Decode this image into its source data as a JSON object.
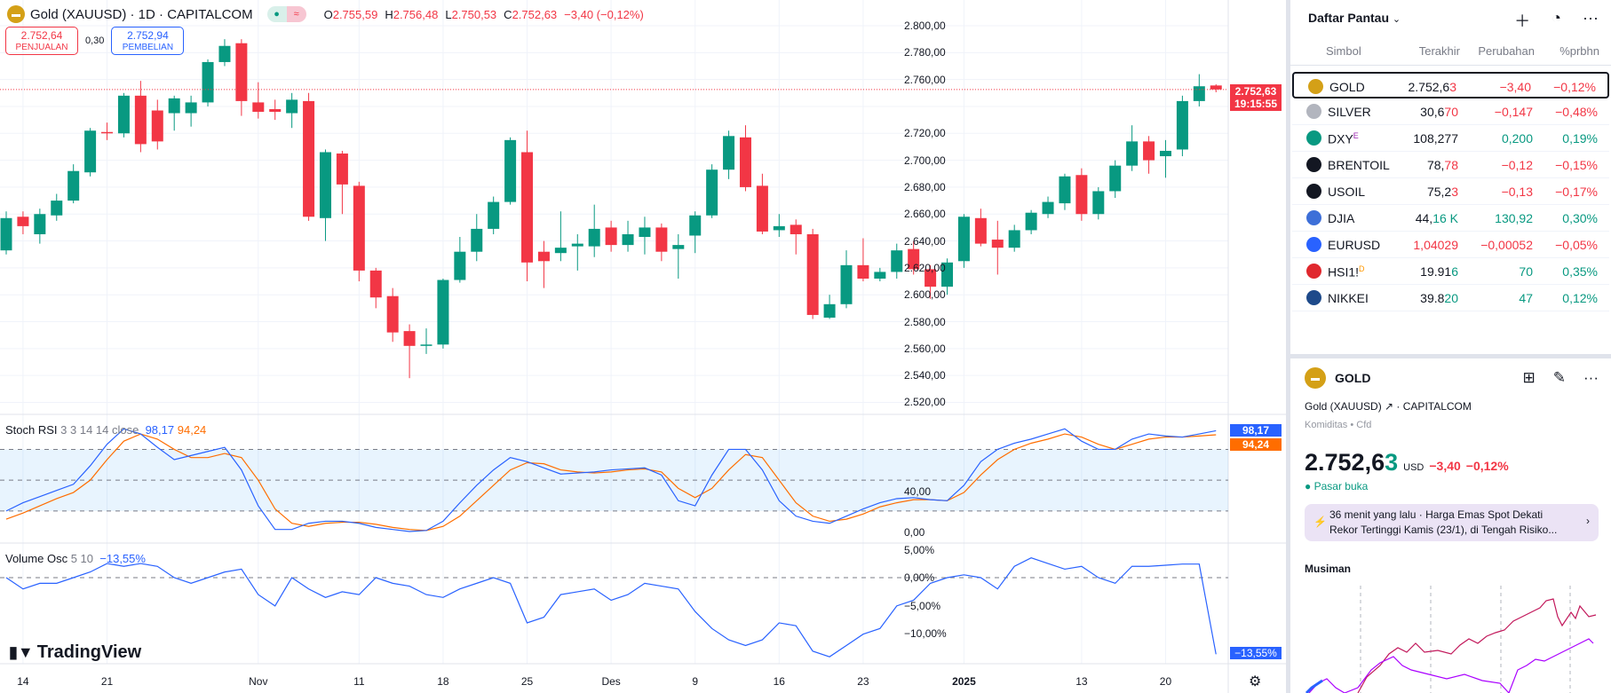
{
  "header": {
    "symbol_title": "Gold (XAUUSD) · 1D · CAPITALCOM",
    "ohlc": {
      "o_label": "O",
      "o": "2.755,59",
      "h_label": "H",
      "h": "2.756,48",
      "l_label": "L",
      "l": "2.750,53",
      "c_label": "C",
      "c": "2.752,63",
      "change": "−3,40 (−0,12%)"
    }
  },
  "trade": {
    "sell_price": "2.752,64",
    "sell_label": "PENJUALAN",
    "spread": "0,30",
    "buy_price": "2.752,94",
    "buy_label": "PEMBELIAN"
  },
  "price_axis": {
    "labels": [
      "2.800,00",
      "2.780,00",
      "2.760,00",
      "2.720,00",
      "2.700,00",
      "2.680,00",
      "2.660,00",
      "2.640,00",
      "2.620,00",
      "2.600,00",
      "2.580,00",
      "2.560,00",
      "2.540,00",
      "2.520,00"
    ],
    "last_price": "2.752,63",
    "countdown": "19:15:55"
  },
  "stoch": {
    "title": "Stoch RSI",
    "params": "3 3 14 14 close",
    "k": "98,17",
    "d": "94,24",
    "axis": [
      "40,00",
      "0,00"
    ]
  },
  "volosc": {
    "title": "Volume Osc",
    "params": "5 10",
    "value": "−13,55%",
    "axis": [
      "5,00%",
      "0,00%",
      "−5,00%",
      "−10,00%"
    ],
    "tag": "−13,55%"
  },
  "time_axis": [
    {
      "label": "14",
      "i": 1
    },
    {
      "label": "21",
      "i": 6
    },
    {
      "label": "Nov",
      "i": 15
    },
    {
      "label": "11",
      "i": 21
    },
    {
      "label": "18",
      "i": 26
    },
    {
      "label": "25",
      "i": 31
    },
    {
      "label": "Des",
      "i": 36
    },
    {
      "label": "9",
      "i": 41
    },
    {
      "label": "16",
      "i": 46
    },
    {
      "label": "23",
      "i": 51
    },
    {
      "label": "2025",
      "i": 57
    },
    {
      "label": "13",
      "i": 64
    },
    {
      "label": "20",
      "i": 69
    }
  ],
  "logo": "TradingView",
  "colors": {
    "up": "#089981",
    "down": "#f23645",
    "k": "#2962ff",
    "d": "#ff6d00"
  },
  "chart_data": {
    "type": "candlestick",
    "ohlc": [
      [
        2633,
        2662,
        2630,
        2657
      ],
      [
        2658,
        2662,
        2645,
        2651
      ],
      [
        2645,
        2664,
        2638,
        2660
      ],
      [
        2659,
        2675,
        2655,
        2670
      ],
      [
        2670,
        2697,
        2668,
        2692
      ],
      [
        2691,
        2724,
        2688,
        2722
      ],
      [
        2721,
        2728,
        2715,
        2720
      ],
      [
        2720,
        2750,
        2717,
        2748
      ],
      [
        2748,
        2759,
        2706,
        2712
      ],
      [
        2737,
        2745,
        2708,
        2714
      ],
      [
        2735,
        2748,
        2722,
        2746
      ],
      [
        2735,
        2748,
        2725,
        2743
      ],
      [
        2743,
        2775,
        2740,
        2773
      ],
      [
        2773,
        2790,
        2770,
        2785
      ],
      [
        2787,
        2790,
        2733,
        2744
      ],
      [
        2743,
        2758,
        2731,
        2736
      ],
      [
        2738,
        2745,
        2730,
        2736
      ],
      [
        2735,
        2750,
        2724,
        2745
      ],
      [
        2744,
        2750,
        2655,
        2658
      ],
      [
        2657,
        2708,
        2640,
        2706
      ],
      [
        2705,
        2707,
        2660,
        2682
      ],
      [
        2681,
        2684,
        2610,
        2618
      ],
      [
        2618,
        2620,
        2590,
        2598
      ],
      [
        2599,
        2605,
        2565,
        2572
      ],
      [
        2573,
        2578,
        2538,
        2562
      ],
      [
        2562,
        2575,
        2556,
        2563
      ],
      [
        2563,
        2612,
        2560,
        2611
      ],
      [
        2611,
        2643,
        2609,
        2632
      ],
      [
        2632,
        2660,
        2625,
        2649
      ],
      [
        2649,
        2673,
        2645,
        2669
      ],
      [
        2669,
        2717,
        2667,
        2715
      ],
      [
        2706,
        2722,
        2610,
        2624
      ],
      [
        2632,
        2640,
        2605,
        2625
      ],
      [
        2631,
        2662,
        2625,
        2635
      ],
      [
        2636,
        2645,
        2618,
        2638
      ],
      [
        2636,
        2667,
        2628,
        2649
      ],
      [
        2650,
        2655,
        2632,
        2637
      ],
      [
        2637,
        2655,
        2632,
        2645
      ],
      [
        2643,
        2658,
        2630,
        2650
      ],
      [
        2650,
        2653,
        2625,
        2632
      ],
      [
        2634,
        2645,
        2612,
        2637
      ],
      [
        2644,
        2662,
        2631,
        2659
      ],
      [
        2659,
        2697,
        2657,
        2693
      ],
      [
        2693,
        2722,
        2686,
        2718
      ],
      [
        2717,
        2726,
        2677,
        2680
      ],
      [
        2681,
        2690,
        2645,
        2647
      ],
      [
        2648,
        2660,
        2643,
        2651
      ],
      [
        2652,
        2656,
        2630,
        2645
      ],
      [
        2645,
        2649,
        2582,
        2585
      ],
      [
        2583,
        2600,
        2582,
        2593
      ],
      [
        2593,
        2633,
        2590,
        2622
      ],
      [
        2622,
        2642,
        2610,
        2612
      ],
      [
        2612,
        2620,
        2610,
        2617
      ],
      [
        2617,
        2638,
        2612,
        2633
      ],
      [
        2634,
        2640,
        2615,
        2619
      ],
      [
        2619,
        2622,
        2597,
        2606
      ],
      [
        2606,
        2627,
        2600,
        2624
      ],
      [
        2625,
        2660,
        2620,
        2658
      ],
      [
        2657,
        2664,
        2636,
        2638
      ],
      [
        2641,
        2655,
        2615,
        2635
      ],
      [
        2635,
        2652,
        2632,
        2648
      ],
      [
        2648,
        2663,
        2645,
        2661
      ],
      [
        2660,
        2673,
        2657,
        2669
      ],
      [
        2668,
        2690,
        2663,
        2688
      ],
      [
        2689,
        2694,
        2655,
        2660
      ],
      [
        2660,
        2680,
        2656,
        2677
      ],
      [
        2677,
        2700,
        2672,
        2696
      ],
      [
        2696,
        2726,
        2692,
        2714
      ],
      [
        2714,
        2718,
        2690,
        2700
      ],
      [
        2703,
        2715,
        2687,
        2707
      ],
      [
        2708,
        2748,
        2703,
        2744
      ],
      [
        2744,
        2764,
        2740,
        2755
      ],
      [
        2755.59,
        2756.48,
        2750.53,
        2752.63
      ]
    ],
    "ylim": [
      2510,
      2820
    ],
    "stoch_k": [
      20,
      28,
      34,
      40,
      46,
      64,
      85,
      100,
      95,
      82,
      70,
      74,
      78,
      82,
      60,
      25,
      2,
      2,
      8,
      10,
      10,
      8,
      4,
      2,
      0,
      1,
      10,
      28,
      45,
      60,
      72,
      68,
      62,
      56,
      57,
      58,
      60,
      61,
      62,
      55,
      30,
      25,
      55,
      80,
      80,
      60,
      30,
      15,
      10,
      8,
      15,
      22,
      28,
      32,
      33,
      31,
      30,
      45,
      68,
      80,
      86,
      90,
      95,
      100,
      88,
      80,
      80,
      90,
      95,
      93,
      92,
      95,
      98.17
    ],
    "stoch_d": [
      12,
      18,
      25,
      32,
      38,
      50,
      70,
      88,
      95,
      90,
      80,
      72,
      72,
      76,
      72,
      50,
      22,
      8,
      5,
      8,
      9,
      9,
      7,
      4,
      2,
      1,
      5,
      15,
      30,
      45,
      60,
      67,
      66,
      60,
      58,
      57,
      58,
      60,
      61,
      58,
      42,
      33,
      42,
      60,
      75,
      72,
      50,
      28,
      15,
      10,
      12,
      17,
      24,
      28,
      31,
      31,
      30,
      38,
      55,
      70,
      80,
      86,
      90,
      95,
      92,
      85,
      80,
      85,
      90,
      92,
      92,
      93,
      94.24
    ],
    "volosc": [
      0,
      -2,
      -1,
      -1,
      0,
      1,
      2.5,
      2,
      2.5,
      2,
      0,
      -1,
      0,
      1,
      1.5,
      -3,
      -5,
      0,
      -2,
      -3.5,
      -2.5,
      -3,
      0,
      -1,
      -1.5,
      -3,
      -3.5,
      -2,
      -1,
      0,
      -1,
      -8,
      -7,
      -3,
      -2.5,
      -2,
      -4,
      -3,
      -1,
      -1.5,
      -2,
      -6,
      -9,
      -11,
      -12,
      -11,
      -8,
      -8.5,
      -13,
      -14,
      -12,
      -10,
      -9,
      -5,
      -4,
      -1,
      0,
      0.5,
      0,
      -2,
      2,
      3.5,
      2.5,
      1.5,
      2,
      0,
      -1,
      2,
      2,
      2.2,
      2.4,
      2.4,
      -13.55
    ]
  },
  "watchlist": {
    "title": "Daftar Pantau",
    "columns": [
      "Simbol",
      "Terakhir",
      "Perubahan",
      "%prbhn"
    ],
    "rows": [
      {
        "sym": "GOLD",
        "last_a": "2.752,6",
        "last_b": "3",
        "chg": "−3,40",
        "pct": "−0,12%",
        "dir": "down",
        "icon": "gold-bar-icon",
        "ic": "#d4a017",
        "badge": ""
      },
      {
        "sym": "SILVER",
        "last_a": "30,6",
        "last_b": "70",
        "chg": "−0,147",
        "pct": "−0,48%",
        "dir": "down",
        "icon": "silver-bar-icon",
        "ic": "#b2b5be",
        "badge": ""
      },
      {
        "sym": "DXY",
        "last_a": "108,277",
        "last_b": "",
        "chg": "0,200",
        "pct": "0,19%",
        "dir": "up",
        "icon": "dollar-icon",
        "ic": "#089981",
        "badge": "E"
      },
      {
        "sym": "BRENTOIL",
        "last_a": "78,",
        "last_b": "78",
        "chg": "−0,12",
        "pct": "−0,15%",
        "dir": "down",
        "icon": "oil-drop-icon",
        "ic": "#131722",
        "badge": ""
      },
      {
        "sym": "USOIL",
        "last_a": "75,2",
        "last_b": "3",
        "chg": "−0,13",
        "pct": "−0,17%",
        "dir": "down",
        "icon": "oil-drop-icon",
        "ic": "#131722",
        "badge": ""
      },
      {
        "sym": "DJIA",
        "last_a": "44,",
        "last_b": "16 K",
        "chg": "130,92",
        "pct": "0,30%",
        "dir": "up",
        "icon": "us-flag-icon",
        "ic": "#3d6fd8",
        "badge": ""
      },
      {
        "sym": "EURUSD",
        "last_a": "",
        "last_b": "1,04029",
        "chg": "−0,00052",
        "pct": "−0,05%",
        "dir": "down",
        "icon": "eu-us-flag-icon",
        "ic": "#2962ff",
        "badge": ""
      },
      {
        "sym": "HSI1!",
        "last_a": "19.91",
        "last_b": "6",
        "chg": "70",
        "pct": "0,35%",
        "dir": "up",
        "icon": "hk-icon",
        "ic": "#e0282e",
        "badge": "D"
      },
      {
        "sym": "NIKKEI",
        "last_a": "39.8",
        "last_b": "20",
        "chg": "47",
        "pct": "0,12%",
        "dir": "up",
        "icon": "nikkei-225-icon",
        "ic": "#1e4a8a",
        "badge": ""
      }
    ]
  },
  "details": {
    "symbol": "GOLD",
    "name": "Gold (XAUUSD)",
    "exchange": "CAPITALCOM",
    "category": "Komiditas",
    "type": "Cfd",
    "price_a": "2.752,6",
    "price_b": "3",
    "currency": "USD",
    "change": "−3,40",
    "pct": "−0,12%",
    "market_status": "Pasar buka",
    "news_time": "36 menit yang lalu",
    "news_headline": "Harga Emas Spot Dekati Rekor Tertinggi Kamis (23/1), di Tengah Risiko...",
    "seasonal_title": "Musiman"
  }
}
